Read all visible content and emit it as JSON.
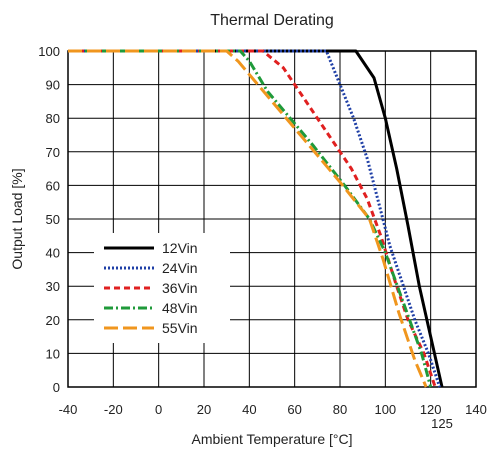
{
  "chart_data": {
    "type": "line",
    "title": "Thermal Derating",
    "xlabel": "Ambient Temperature [°C]",
    "ylabel": "Output Load [%]",
    "xlim": [
      -40,
      140
    ],
    "ylim": [
      0,
      100
    ],
    "x_ticks": [
      "-40",
      "-20",
      "0",
      "20",
      "40",
      "60",
      "80",
      "100",
      "120",
      "140"
    ],
    "x_extra_tick": "125",
    "y_ticks": [
      "0",
      "10",
      "20",
      "30",
      "40",
      "50",
      "60",
      "70",
      "80",
      "90",
      "100"
    ],
    "grid": true,
    "legend_position": "lower-left",
    "series": [
      {
        "name": "12Vin",
        "color": "#000000",
        "dash": "solid",
        "points": [
          [
            -40,
            100
          ],
          [
            87,
            100
          ],
          [
            95,
            92
          ],
          [
            100,
            80
          ],
          [
            105,
            65
          ],
          [
            110,
            48
          ],
          [
            115,
            30
          ],
          [
            120,
            15
          ],
          [
            125,
            0
          ]
        ]
      },
      {
        "name": "24Vin",
        "color": "#1f3fa6",
        "dash": "dotted",
        "points": [
          [
            -40,
            100
          ],
          [
            74,
            100
          ],
          [
            80,
            90
          ],
          [
            86,
            80
          ],
          [
            92,
            68
          ],
          [
            97,
            55
          ],
          [
            102,
            42
          ],
          [
            108,
            30
          ],
          [
            113,
            20
          ],
          [
            119,
            10
          ],
          [
            124,
            0
          ]
        ]
      },
      {
        "name": "36Vin",
        "color": "#e02020",
        "dash": "dashed",
        "points": [
          [
            -40,
            100
          ],
          [
            46,
            100
          ],
          [
            55,
            95
          ],
          [
            65,
            85
          ],
          [
            75,
            75
          ],
          [
            85,
            65
          ],
          [
            92,
            56
          ],
          [
            98,
            45
          ],
          [
            105,
            30
          ],
          [
            110,
            20
          ],
          [
            117,
            10
          ],
          [
            122,
            0
          ]
        ]
      },
      {
        "name": "48Vin",
        "color": "#1f9a3a",
        "dash": "dashdot",
        "points": [
          [
            -40,
            100
          ],
          [
            36,
            100
          ],
          [
            40,
            97
          ],
          [
            48,
            88
          ],
          [
            58,
            80
          ],
          [
            68,
            72
          ],
          [
            82,
            60
          ],
          [
            93,
            50
          ],
          [
            100,
            40
          ],
          [
            108,
            25
          ],
          [
            116,
            10
          ],
          [
            120,
            0
          ]
        ]
      },
      {
        "name": "55Vin",
        "color": "#f0961e",
        "dash": "longdash",
        "points": [
          [
            -40,
            100
          ],
          [
            30,
            100
          ],
          [
            35,
            97
          ],
          [
            45,
            89
          ],
          [
            55,
            81
          ],
          [
            65,
            73
          ],
          [
            80,
            61
          ],
          [
            93,
            50
          ],
          [
            99,
            38
          ],
          [
            106,
            22
          ],
          [
            113,
            8
          ],
          [
            118,
            0
          ]
        ]
      }
    ]
  }
}
